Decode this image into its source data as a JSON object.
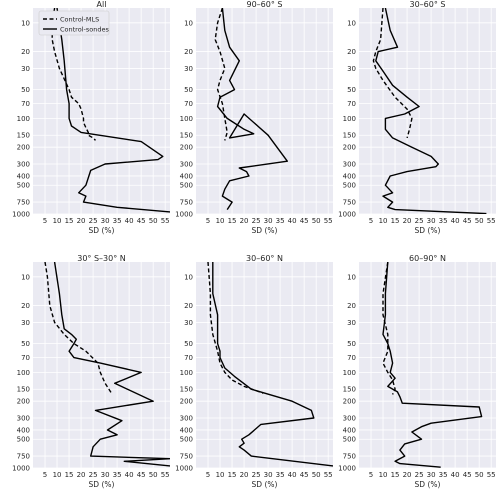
{
  "chart_data": [
    {
      "type": "line",
      "title": "All",
      "xlabel": "SD (%)",
      "ylabel": "",
      "xlim": [
        0,
        57
      ],
      "xticks": [
        5,
        10,
        15,
        20,
        25,
        30,
        35,
        40,
        45,
        50,
        55
      ],
      "yticks": [
        10,
        20,
        30,
        50,
        70,
        100,
        150,
        200,
        300,
        400,
        500,
        750,
        1000
      ],
      "ylim": [
        7,
        1000
      ],
      "yscale": "log-inverted",
      "grid": true,
      "legend": {
        "placement": "top-left",
        "entries": [
          "Control-MLS",
          "Control-sondes"
        ]
      },
      "series": [
        {
          "name": "Control-MLS",
          "style": "dashed",
          "x": [
            9,
            8,
            8,
            9,
            11,
            15,
            16,
            19,
            20,
            21,
            21,
            22,
            23,
            23,
            25,
            26
          ],
          "y": [
            7,
            10,
            15,
            20,
            30,
            50,
            60,
            70,
            80,
            100,
            110,
            125,
            140,
            150,
            160,
            170
          ]
        },
        {
          "name": "Control-sondes",
          "style": "solid",
          "x": [
            10,
            12,
            13,
            14,
            15,
            15,
            15,
            16,
            20,
            45,
            54,
            52,
            30,
            24,
            22,
            19,
            22,
            21,
            35,
            57
          ],
          "y": [
            7,
            15,
            25,
            50,
            70,
            90,
            100,
            120,
            140,
            175,
            250,
            270,
            300,
            350,
            500,
            600,
            650,
            750,
            850,
            950
          ]
        }
      ]
    },
    {
      "type": "line",
      "title": "90–60° S",
      "xlabel": "SD (%)",
      "ylabel": "",
      "xlim": [
        0,
        57
      ],
      "xticks": [
        5,
        10,
        15,
        20,
        25,
        30,
        35,
        40,
        45,
        50,
        55
      ],
      "yticks": [
        10,
        20,
        30,
        50,
        70,
        100,
        150,
        200,
        300,
        400,
        500,
        750,
        1000
      ],
      "ylim": [
        7,
        1000
      ],
      "yscale": "log-inverted",
      "grid": true,
      "series": [
        {
          "name": "Control-MLS",
          "style": "dashed",
          "x": [
            11,
            9,
            8,
            10,
            12,
            10,
            9,
            11,
            12,
            13,
            12
          ],
          "y": [
            7,
            10,
            15,
            20,
            30,
            40,
            50,
            70,
            100,
            140,
            170
          ]
        },
        {
          "name": "Control-sondes",
          "style": "solid",
          "x": [
            11,
            12,
            14,
            18,
            14,
            16,
            10,
            9,
            13,
            20,
            24,
            14,
            20,
            30,
            38,
            18,
            21,
            22,
            14,
            12,
            11,
            15,
            13
          ],
          "y": [
            7,
            12,
            18,
            25,
            40,
            50,
            60,
            75,
            100,
            130,
            145,
            160,
            90,
            150,
            280,
            330,
            360,
            400,
            450,
            550,
            650,
            750,
            900
          ]
        }
      ]
    },
    {
      "type": "line",
      "title": "30–60° S",
      "xlabel": "SD (%)",
      "ylabel": "",
      "xlim": [
        0,
        57
      ],
      "xticks": [
        5,
        10,
        15,
        20,
        25,
        30,
        35,
        40,
        45,
        50,
        55
      ],
      "yticks": [
        10,
        20,
        30,
        50,
        70,
        100,
        150,
        200,
        300,
        400,
        500,
        750,
        1000
      ],
      "ylim": [
        7,
        1000
      ],
      "yscale": "log-inverted",
      "grid": true,
      "series": [
        {
          "name": "Control-MLS",
          "style": "dashed",
          "x": [
            10,
            9,
            7,
            6,
            7,
            10,
            15,
            20,
            22,
            21,
            20
          ],
          "y": [
            7,
            15,
            20,
            25,
            30,
            40,
            60,
            80,
            100,
            130,
            160
          ]
        },
        {
          "name": "Control-sondes",
          "style": "solid",
          "x": [
            11,
            13,
            16,
            8,
            7,
            10,
            14,
            20,
            25,
            19,
            11,
            11,
            14,
            22,
            30,
            33,
            32,
            20,
            13,
            11,
            14,
            10,
            14,
            12,
            15,
            53
          ],
          "y": [
            7,
            12,
            18,
            20,
            25,
            32,
            45,
            60,
            75,
            90,
            100,
            130,
            160,
            200,
            250,
            300,
            320,
            360,
            400,
            500,
            600,
            650,
            750,
            850,
            900,
            990
          ]
        }
      ]
    },
    {
      "type": "line",
      "title": "30° S–30° N",
      "xlabel": "SD (%)",
      "ylabel": "",
      "xlim": [
        0,
        57
      ],
      "xticks": [
        5,
        10,
        15,
        20,
        25,
        30,
        35,
        40,
        45,
        50,
        55
      ],
      "yticks": [
        10,
        20,
        30,
        50,
        70,
        100,
        150,
        200,
        300,
        400,
        500,
        750,
        1000
      ],
      "ylim": [
        7,
        1000
      ],
      "yscale": "log-inverted",
      "grid": true,
      "series": [
        {
          "name": "Control-MLS",
          "style": "dashed",
          "x": [
            5,
            6,
            7,
            9,
            13,
            17,
            22,
            27,
            28,
            30,
            33
          ],
          "y": [
            7,
            10,
            20,
            30,
            40,
            50,
            60,
            80,
            100,
            130,
            170
          ]
        },
        {
          "name": "Control-sondes",
          "style": "solid",
          "x": [
            9,
            11,
            12,
            13,
            16,
            18,
            17,
            15,
            17,
            28,
            45,
            34,
            50,
            26,
            37,
            31,
            35,
            28,
            25,
            24,
            57,
            38,
            57
          ],
          "y": [
            7,
            15,
            25,
            35,
            40,
            45,
            50,
            60,
            70,
            80,
            100,
            130,
            200,
            250,
            320,
            400,
            450,
            500,
            600,
            750,
            800,
            850,
            950
          ]
        }
      ]
    },
    {
      "type": "line",
      "title": "30–60° N",
      "xlabel": "SD (%)",
      "ylabel": "",
      "xlim": [
        0,
        57
      ],
      "xticks": [
        5,
        10,
        15,
        20,
        25,
        30,
        35,
        40,
        45,
        50,
        55
      ],
      "yticks": [
        10,
        20,
        30,
        50,
        70,
        100,
        150,
        200,
        300,
        400,
        500,
        750,
        1000
      ],
      "ylim": [
        7,
        1000
      ],
      "yscale": "log-inverted",
      "grid": true,
      "series": [
        {
          "name": "Control-MLS",
          "style": "dashed",
          "x": [
            5,
            6,
            6,
            7,
            9,
            10,
            12,
            15,
            20,
            28
          ],
          "y": [
            7,
            15,
            25,
            40,
            60,
            80,
            100,
            120,
            140,
            165
          ]
        },
        {
          "name": "Control-sondes",
          "style": "solid",
          "x": [
            7,
            7,
            9,
            9,
            9,
            10,
            10,
            12,
            16,
            23,
            40,
            48,
            49,
            27,
            22,
            19,
            20,
            18,
            20,
            23,
            57
          ],
          "y": [
            7,
            15,
            25,
            40,
            50,
            60,
            70,
            90,
            110,
            150,
            200,
            250,
            300,
            350,
            450,
            500,
            550,
            600,
            650,
            750,
            950
          ]
        }
      ]
    },
    {
      "type": "line",
      "title": "60–90° N",
      "xlabel": "SD (%)",
      "ylabel": "",
      "xlim": [
        0,
        57
      ],
      "xticks": [
        5,
        10,
        15,
        20,
        25,
        30,
        35,
        40,
        45,
        50,
        55
      ],
      "yticks": [
        10,
        20,
        30,
        50,
        70,
        100,
        150,
        200,
        300,
        400,
        500,
        750,
        1000
      ],
      "ylim": [
        7,
        1000
      ],
      "yscale": "log-inverted",
      "grid": true,
      "series": [
        {
          "name": "Control-MLS",
          "style": "dashed",
          "x": [
            12,
            10,
            10,
            12,
            12,
            10,
            12,
            14,
            15,
            14
          ],
          "y": [
            7,
            15,
            25,
            40,
            60,
            80,
            100,
            120,
            150,
            170
          ]
        },
        {
          "name": "Control-sondes",
          "style": "solid",
          "x": [
            12,
            11,
            11,
            10,
            12,
            13,
            14,
            13,
            15,
            12,
            16,
            17,
            18,
            50,
            51,
            30,
            26,
            22,
            26,
            19,
            17,
            19,
            15,
            17,
            34
          ],
          "y": [
            7,
            15,
            25,
            40,
            50,
            60,
            80,
            100,
            115,
            140,
            160,
            180,
            210,
            230,
            290,
            340,
            370,
            420,
            500,
            560,
            650,
            750,
            850,
            900,
            980
          ]
        }
      ]
    }
  ]
}
